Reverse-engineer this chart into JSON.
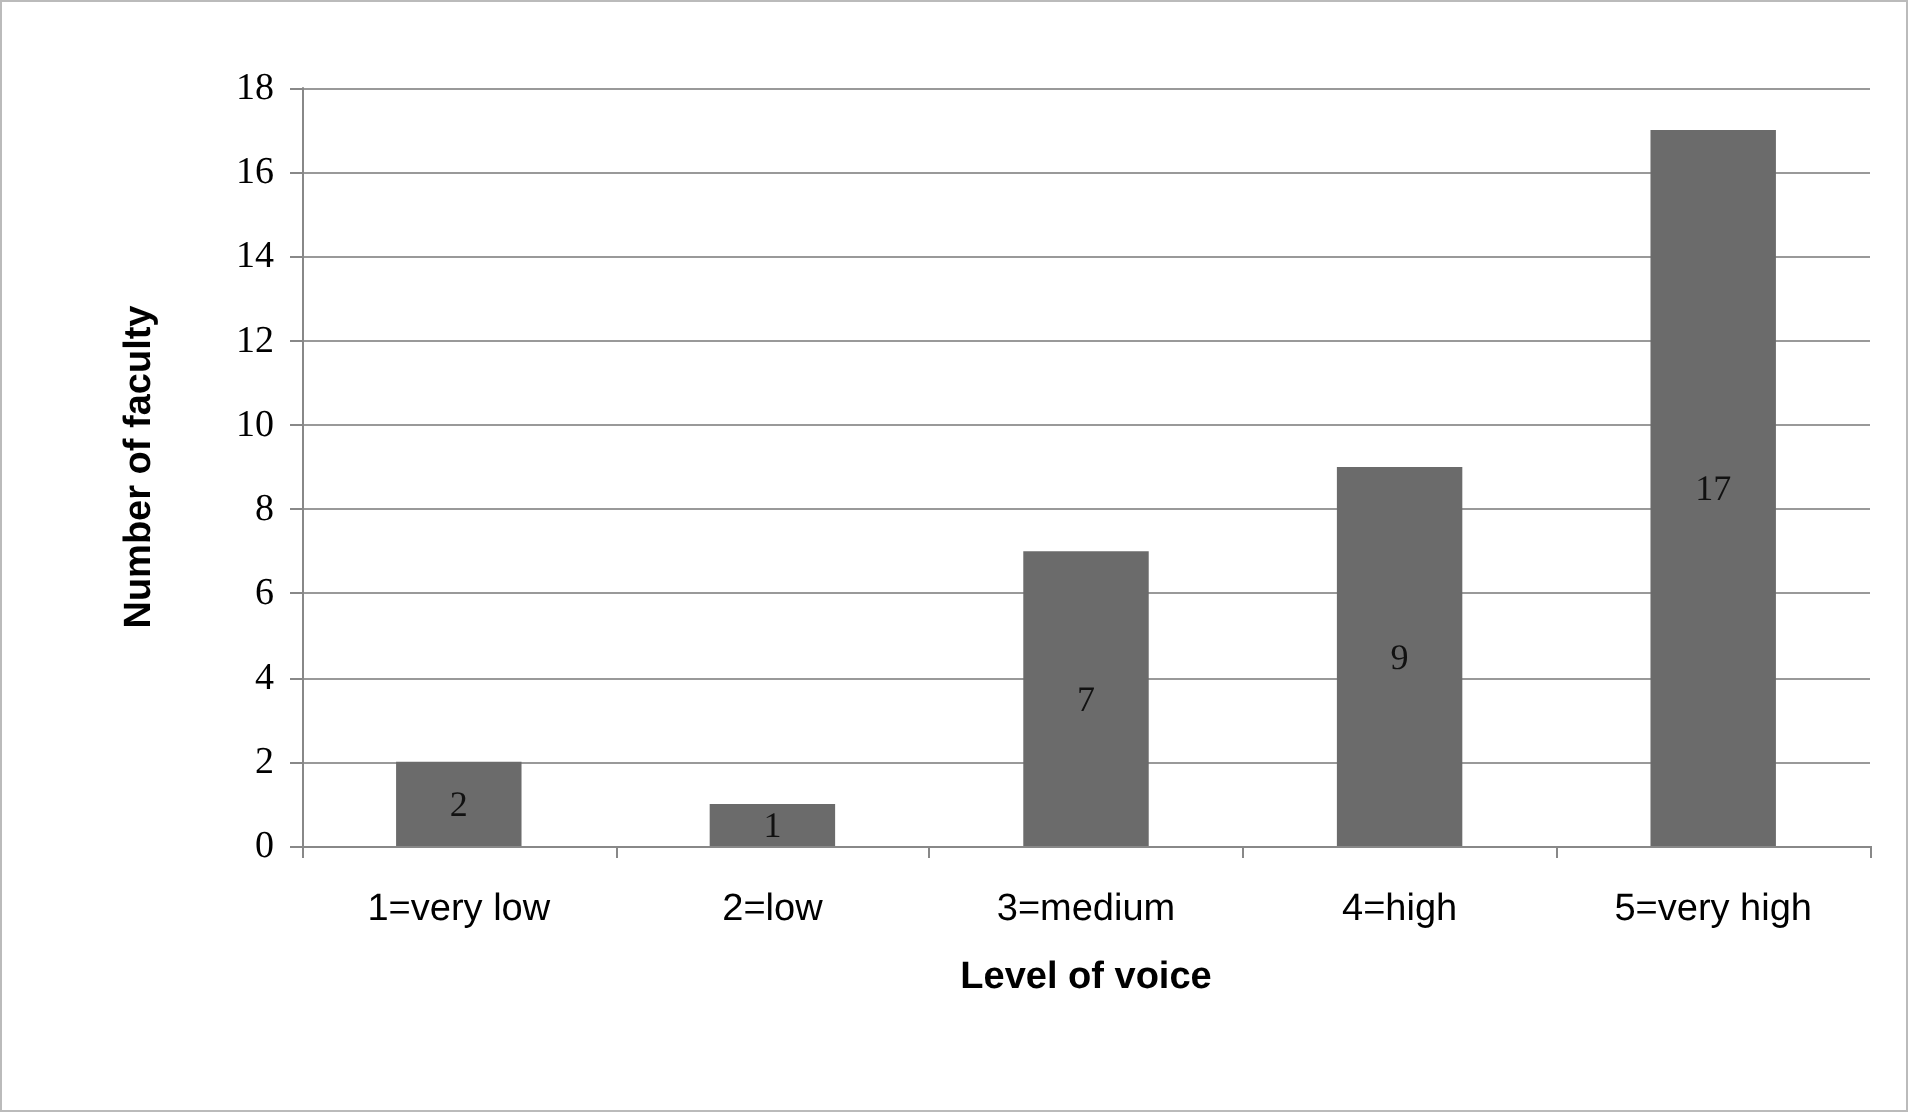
{
  "chart_data": {
    "type": "bar",
    "xlabel": "Level of voice",
    "ylabel": "Number of faculty",
    "categories": [
      "1=very low",
      "2=low",
      "3=medium",
      "4=high",
      "5=very high"
    ],
    "values": [
      2,
      1,
      7,
      9,
      17
    ],
    "color": "#6b6b6b",
    "ylim": [
      0,
      18
    ],
    "yticks": [
      0,
      2,
      4,
      6,
      8,
      10,
      12,
      14,
      16,
      18
    ],
    "grid": "y",
    "data_labels": true
  }
}
